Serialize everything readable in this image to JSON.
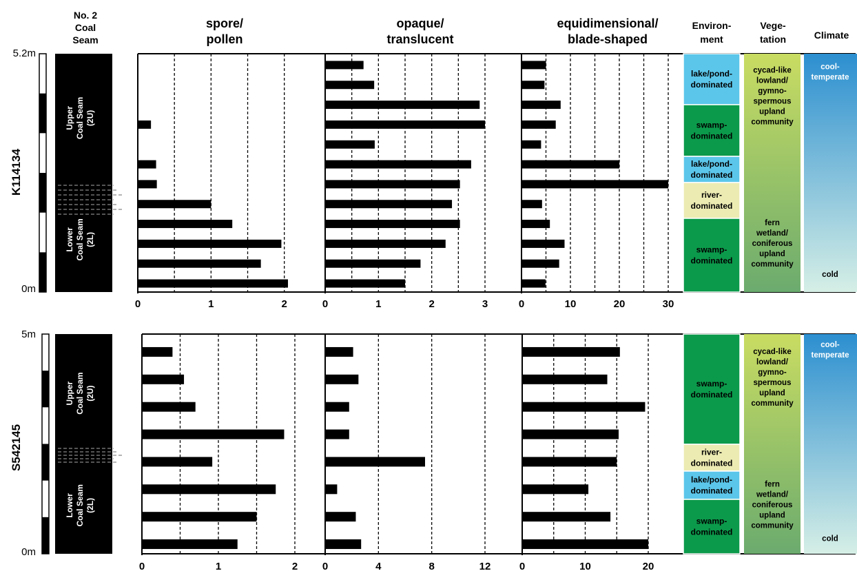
{
  "headers": {
    "seam": [
      "No. 2",
      "Coal",
      "Seam"
    ],
    "spore_pollen": [
      "spore/",
      "pollen"
    ],
    "opaque_translucent": [
      "opaque/",
      "translucent"
    ],
    "equidimensional_blade": [
      "equidimensional/",
      "blade-shaped"
    ],
    "environment": [
      "Environ-",
      "ment"
    ],
    "vegetation": [
      "Vege-",
      "tation"
    ],
    "climate": "Climate"
  },
  "colors": {
    "lake": "#5bc6ea",
    "swamp": "#0b9a4b",
    "river": "#ecebb2",
    "veg_top": "#c9dc62",
    "veg_bottom": "#6bab6e",
    "climate_top": "#2c8fd0",
    "climate_bottom": "#d6efe6",
    "bar": "#000000"
  },
  "chart_data": [
    {
      "type": "bar",
      "orientation": "horizontal",
      "well": "K114134",
      "depth_labels": [
        "5.2m",
        "0m"
      ],
      "seam_labels": {
        "upper": [
          "Upper",
          "Coal Seam",
          "(2U)"
        ],
        "lower": [
          "Lower",
          "Coal Seam",
          "(2L)"
        ]
      },
      "panels": [
        {
          "name": "spore/pollen",
          "xlim": [
            0,
            2.3
          ],
          "ticks": [
            "0",
            "1",
            "2"
          ],
          "tick_values": [
            0,
            1,
            2
          ],
          "gridlines": [
            0.5,
            1,
            1.5,
            2
          ],
          "values": [
            0,
            0,
            0,
            0.18,
            0,
            0.25,
            0.26,
            1.0,
            1.29,
            1.96,
            1.68,
            2.05
          ]
        },
        {
          "name": "opaque/translucent",
          "xlim": [
            0,
            3.5
          ],
          "ticks": [
            "0",
            "1",
            "2",
            "3"
          ],
          "tick_values": [
            0,
            1,
            2,
            3
          ],
          "gridlines": [
            0.5,
            1,
            1.5,
            2,
            2.5,
            3
          ],
          "values": [
            0.72,
            0.92,
            2.9,
            3.0,
            0.93,
            2.74,
            2.53,
            2.38,
            2.53,
            2.26,
            1.79,
            1.5
          ]
        },
        {
          "name": "equidimensional/blade-shaped",
          "xlim": [
            0,
            32
          ],
          "ticks": [
            "0",
            "10",
            "20",
            "30"
          ],
          "tick_values": [
            0,
            10,
            20,
            30
          ],
          "gridlines": [
            5,
            10,
            15,
            20,
            25,
            30
          ],
          "values": [
            5,
            4.7,
            8,
            7,
            4,
            20,
            30,
            4.2,
            5.8,
            8.8,
            7.7,
            4.9
          ]
        }
      ],
      "environment": [
        {
          "label": [
            "lake/pond-",
            "dominated"
          ],
          "type": "lake"
        },
        {
          "label": [
            "swamp-",
            "dominated"
          ],
          "type": "swamp"
        },
        {
          "label": [
            "lake/pond-",
            "dominated"
          ],
          "type": "lake"
        },
        {
          "label": [
            "river-",
            "dominated"
          ],
          "type": "river"
        },
        {
          "label": [
            "swamp-",
            "dominated"
          ],
          "type": "swamp"
        }
      ],
      "vegetation": [
        [
          "cycad-like",
          "lowland/",
          "gymno-",
          "spermous",
          "upland",
          "community"
        ],
        [
          "fern",
          "wetland/",
          "coniferous",
          "upland",
          "community"
        ]
      ],
      "climate": [
        [
          "cool-",
          "temperate"
        ],
        [
          "cold"
        ]
      ]
    },
    {
      "type": "bar",
      "orientation": "horizontal",
      "well": "S542145",
      "depth_labels": [
        "5m",
        "0m"
      ],
      "seam_labels": {
        "upper": [
          "Upper",
          "Coal Seam",
          "(2U)"
        ],
        "lower": [
          "Lower",
          "Coal Seam",
          "(2L)"
        ]
      },
      "panels": [
        {
          "name": "spore/pollen",
          "xlim": [
            0,
            2.4
          ],
          "ticks": [
            "0",
            "1",
            "2"
          ],
          "tick_values": [
            0,
            1,
            2
          ],
          "gridlines": [
            0.5,
            1,
            1.5,
            2
          ],
          "values": [
            0.4,
            0.55,
            0.7,
            1.86,
            0.92,
            1.75,
            1.5,
            1.25
          ]
        },
        {
          "name": "opaque/translucent",
          "xlim": [
            0,
            15
          ],
          "ticks": [
            "0",
            "4",
            "8",
            "12"
          ],
          "tick_values": [
            0,
            4,
            8,
            12
          ],
          "gridlines": [
            4,
            8,
            12
          ],
          "values": [
            2.1,
            2.5,
            1.8,
            1.8,
            7.5,
            0.9,
            2.3,
            2.7
          ]
        },
        {
          "name": "equidimensional/blade-shaped",
          "xlim": [
            0,
            25
          ],
          "ticks": [
            "0",
            "10",
            "20"
          ],
          "tick_values": [
            0,
            10,
            20
          ],
          "gridlines": [
            5,
            10,
            15,
            20
          ],
          "values": [
            15.5,
            13.5,
            19.5,
            15.3,
            15,
            10.5,
            14,
            20
          ]
        }
      ],
      "environment": [
        {
          "label": [
            "swamp-",
            "dominated"
          ],
          "type": "swamp"
        },
        {
          "label": [
            "river-",
            "dominated"
          ],
          "type": "river"
        },
        {
          "label": [
            "lake/pond-",
            "dominated"
          ],
          "type": "lake"
        },
        {
          "label": [
            "swamp-",
            "dominated"
          ],
          "type": "swamp"
        }
      ],
      "vegetation": [
        [
          "cycad-like",
          "lowland/",
          "gymno-",
          "spermous",
          "upland",
          "community"
        ],
        [
          "fern",
          "wetland/",
          "coniferous",
          "upland",
          "community"
        ]
      ],
      "climate": [
        [
          "cool-",
          "temperate"
        ],
        [
          "cold"
        ]
      ]
    }
  ]
}
